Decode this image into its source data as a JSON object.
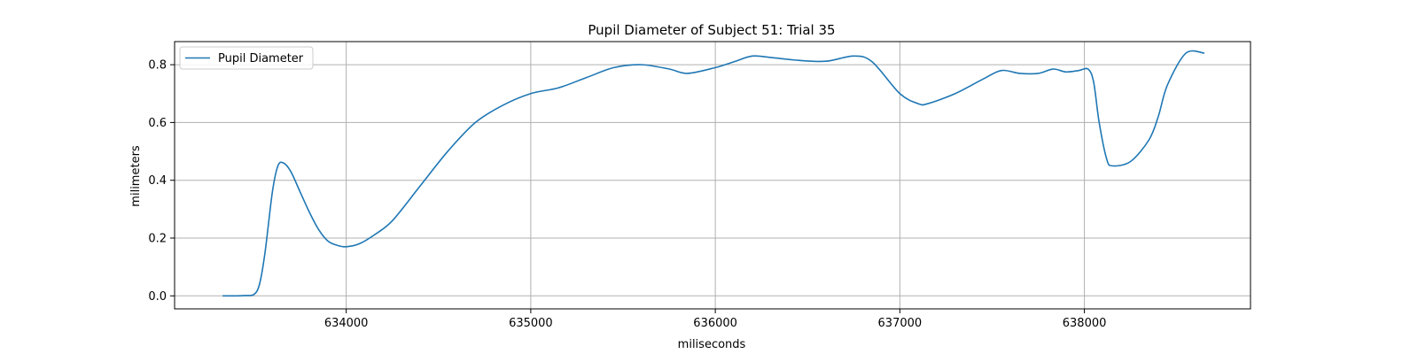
{
  "chart_data": {
    "type": "line",
    "title": "Pupil Diameter of Subject 51: Trial 35",
    "xlabel": "miliseconds",
    "ylabel": "milimeters",
    "xlim": [
      633070,
      638900
    ],
    "ylim": [
      -0.045,
      0.88
    ],
    "xticks": [
      634000,
      635000,
      636000,
      637000,
      638000
    ],
    "yticks": [
      0.0,
      0.2,
      0.4,
      0.6,
      0.8
    ],
    "ytick_labels": [
      "0.0",
      "0.2",
      "0.4",
      "0.6",
      "0.8"
    ],
    "grid": true,
    "legend": {
      "position": "top-left",
      "entries": [
        "Pupil Diameter"
      ]
    },
    "colors": {
      "series": "#1f77b4",
      "grid": "#b0b0b0",
      "axes": "#000000"
    },
    "series": [
      {
        "name": "Pupil Diameter",
        "x": [
          633330,
          633400,
          633450,
          633500,
          633530,
          633560,
          633600,
          633630,
          633660,
          633700,
          633750,
          633800,
          633850,
          633900,
          633950,
          634000,
          634070,
          634150,
          634250,
          634400,
          634550,
          634700,
          634850,
          635000,
          635150,
          635300,
          635450,
          635600,
          635750,
          635850,
          636000,
          636100,
          636200,
          636300,
          636450,
          636600,
          636750,
          636850,
          637000,
          637100,
          637150,
          637300,
          637450,
          637550,
          637650,
          637750,
          637830,
          637900,
          637970,
          638020,
          638050,
          638080,
          638120,
          638150,
          638250,
          638350,
          638400,
          638450,
          638550,
          638650
        ],
        "y": [
          0.0,
          0.0,
          0.001,
          0.005,
          0.04,
          0.15,
          0.36,
          0.45,
          0.46,
          0.43,
          0.36,
          0.29,
          0.23,
          0.19,
          0.175,
          0.17,
          0.18,
          0.21,
          0.26,
          0.38,
          0.5,
          0.6,
          0.66,
          0.7,
          0.72,
          0.755,
          0.79,
          0.8,
          0.785,
          0.77,
          0.79,
          0.81,
          0.83,
          0.825,
          0.815,
          0.812,
          0.83,
          0.81,
          0.7,
          0.665,
          0.665,
          0.7,
          0.75,
          0.78,
          0.77,
          0.77,
          0.785,
          0.775,
          0.78,
          0.785,
          0.74,
          0.6,
          0.475,
          0.45,
          0.465,
          0.54,
          0.62,
          0.73,
          0.84,
          0.84
        ]
      }
    ]
  }
}
